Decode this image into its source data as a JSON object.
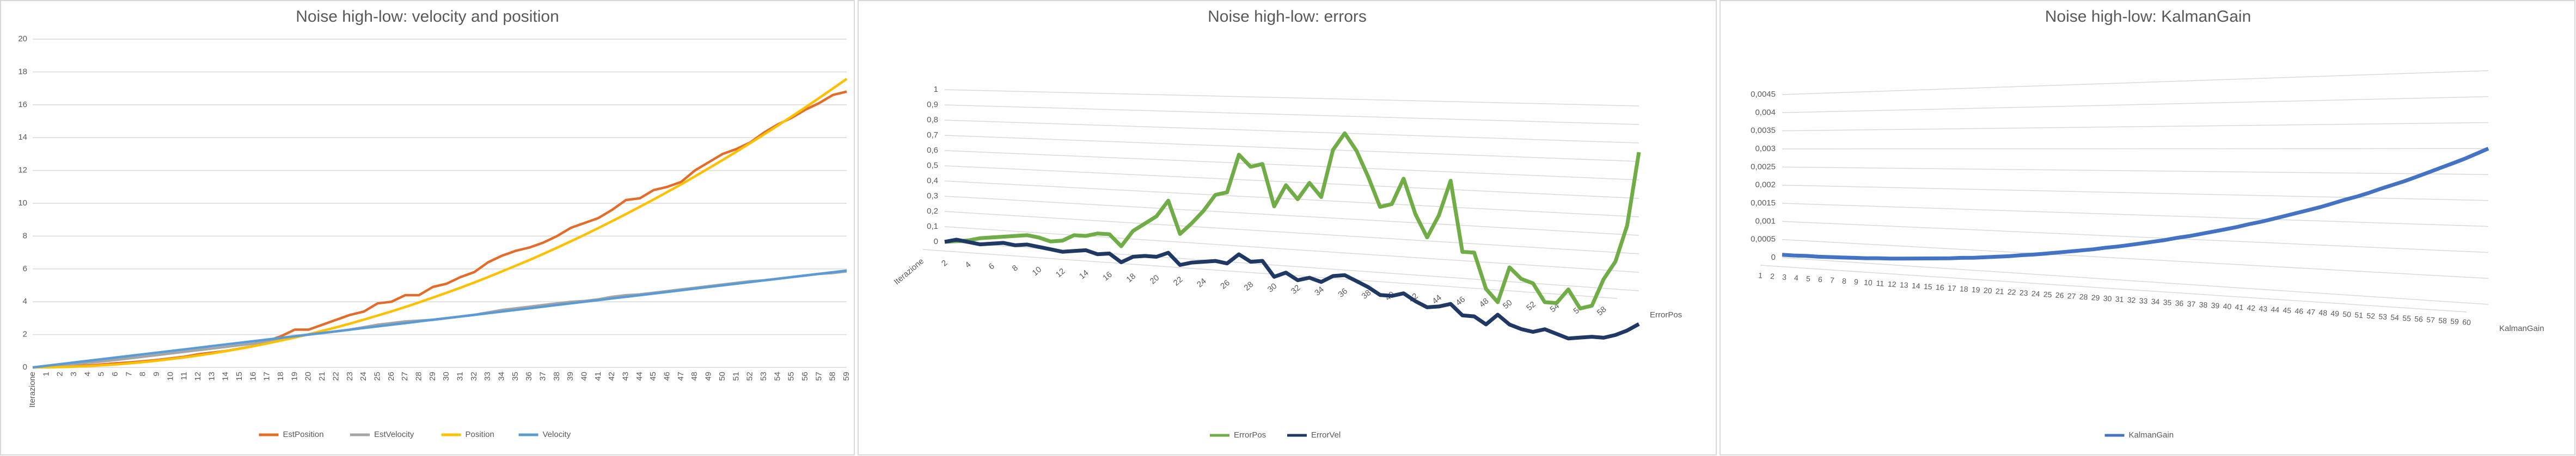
{
  "chart_data": [
    {
      "type": "line",
      "title": "Noise high-low: velocity and position",
      "categories": [
        "Iterazione",
        1,
        2,
        3,
        4,
        5,
        6,
        7,
        8,
        9,
        10,
        11,
        12,
        13,
        14,
        15,
        16,
        17,
        18,
        19,
        20,
        21,
        22,
        23,
        24,
        25,
        26,
        27,
        28,
        29,
        30,
        31,
        32,
        33,
        34,
        35,
        36,
        37,
        38,
        39,
        40,
        41,
        42,
        43,
        44,
        45,
        46,
        47,
        48,
        49,
        50,
        51,
        52,
        53,
        54,
        55,
        56,
        57,
        58,
        59
      ],
      "series": [
        {
          "name": "EstPosition",
          "color": "#e46c2b",
          "values": [
            0,
            0.02,
            0.05,
            0.08,
            0.12,
            0.18,
            0.25,
            0.3,
            0.37,
            0.45,
            0.55,
            0.65,
            0.8,
            0.9,
            1.0,
            1.15,
            1.3,
            1.6,
            1.9,
            2.3,
            2.3,
            2.6,
            2.9,
            3.2,
            3.4,
            3.9,
            4.0,
            4.4,
            4.4,
            4.9,
            5.1,
            5.5,
            5.8,
            6.4,
            6.8,
            7.1,
            7.3,
            7.6,
            8.0,
            8.5,
            8.8,
            9.1,
            9.6,
            10.2,
            10.3,
            10.8,
            11.0,
            11.3,
            12.0,
            12.5,
            13.0,
            13.3,
            13.7,
            14.3,
            14.8,
            15.2,
            15.7,
            16.1,
            16.6,
            16.8
          ]
        },
        {
          "name": "EstVelocity",
          "color": "#a5a5a5",
          "values": [
            0,
            0.05,
            0.12,
            0.2,
            0.28,
            0.36,
            0.45,
            0.55,
            0.65,
            0.75,
            0.85,
            0.95,
            1.05,
            1.15,
            1.25,
            1.35,
            1.45,
            1.6,
            1.75,
            1.9,
            2.0,
            2.1,
            2.2,
            2.3,
            2.45,
            2.6,
            2.7,
            2.8,
            2.85,
            2.9,
            3.0,
            3.1,
            3.2,
            3.35,
            3.5,
            3.6,
            3.7,
            3.8,
            3.9,
            4.0,
            4.05,
            4.15,
            4.3,
            4.4,
            4.45,
            4.55,
            4.65,
            4.75,
            4.85,
            4.95,
            5.05,
            5.15,
            5.25,
            5.3,
            5.4,
            5.5,
            5.6,
            5.7,
            5.75,
            5.85
          ]
        },
        {
          "name": "Position",
          "color": "#ffc000",
          "values": [
            0,
            0.01,
            0.02,
            0.05,
            0.08,
            0.13,
            0.18,
            0.25,
            0.32,
            0.41,
            0.51,
            0.61,
            0.73,
            0.85,
            0.99,
            1.14,
            1.29,
            1.46,
            1.64,
            1.82,
            2.02,
            2.23,
            2.44,
            2.67,
            2.91,
            3.16,
            3.41,
            3.68,
            3.96,
            4.25,
            4.55,
            4.85,
            5.17,
            5.5,
            5.84,
            6.19,
            6.54,
            6.91,
            7.29,
            7.68,
            8.08,
            8.49,
            8.91,
            9.34,
            9.78,
            10.23,
            10.69,
            11.15,
            11.64,
            12.13,
            12.63,
            13.14,
            13.66,
            14.19,
            14.73,
            15.28,
            15.84,
            16.41,
            16.99,
            17.58
          ]
        },
        {
          "name": "Velocity",
          "color": "#5b9bd5",
          "values": [
            0,
            0.1,
            0.2,
            0.3,
            0.4,
            0.5,
            0.6,
            0.7,
            0.8,
            0.9,
            1.0,
            1.1,
            1.2,
            1.3,
            1.4,
            1.5,
            1.6,
            1.7,
            1.8,
            1.9,
            2.0,
            2.1,
            2.2,
            2.3,
            2.4,
            2.5,
            2.6,
            2.7,
            2.8,
            2.9,
            3.0,
            3.1,
            3.2,
            3.3,
            3.4,
            3.5,
            3.6,
            3.7,
            3.8,
            3.9,
            4.0,
            4.1,
            4.2,
            4.3,
            4.4,
            4.5,
            4.6,
            4.7,
            4.8,
            4.9,
            5.0,
            5.1,
            5.2,
            5.3,
            5.4,
            5.5,
            5.6,
            5.7,
            5.8,
            5.9
          ]
        }
      ],
      "ylim": [
        0,
        20
      ],
      "yticks": [
        0,
        2,
        4,
        6,
        8,
        10,
        12,
        14,
        16,
        18,
        20
      ],
      "grid": true,
      "legend": "bottom"
    },
    {
      "type": "line3d",
      "title": "Noise high-low: errors",
      "categories": [
        "Iterazione",
        null,
        2,
        null,
        4,
        null,
        6,
        null,
        8,
        null,
        10,
        null,
        12,
        null,
        14,
        null,
        16,
        null,
        18,
        null,
        20,
        null,
        22,
        null,
        24,
        null,
        26,
        null,
        28,
        null,
        30,
        null,
        32,
        null,
        34,
        null,
        36,
        null,
        38,
        null,
        40,
        null,
        42,
        null,
        44,
        null,
        46,
        null,
        48,
        null,
        50,
        null,
        52,
        null,
        54,
        null,
        56,
        null,
        58,
        null
      ],
      "depth_label": "ErrorPos",
      "series": [
        {
          "name": "ErrorPos",
          "color": "#70ad47",
          "values": [
            0,
            0.01,
            0.02,
            0.04,
            0.05,
            0.06,
            0.07,
            0.08,
            0.07,
            0.05,
            0.06,
            0.1,
            0.1,
            0.12,
            0.12,
            0.05,
            0.15,
            0.2,
            0.25,
            0.35,
            0.15,
            0.22,
            0.3,
            0.4,
            0.42,
            0.65,
            0.58,
            0.6,
            0.35,
            0.48,
            0.4,
            0.5,
            0.42,
            0.7,
            0.8,
            0.7,
            0.55,
            0.38,
            0.4,
            0.55,
            0.35,
            0.22,
            0.35,
            0.55,
            0.15,
            0.15,
            -0.05,
            -0.12,
            0.08,
            0.02,
            0,
            -0.1,
            -0.1,
            -0.02,
            -0.12,
            -0.1,
            0.05,
            0.15,
            0.35,
            0.75
          ]
        },
        {
          "name": "ErrorVel",
          "color": "#203864",
          "values": [
            0,
            0.02,
            0.01,
            0,
            0.01,
            0.02,
            0.01,
            0.02,
            0.01,
            0,
            -0.01,
            0,
            0.01,
            -0.01,
            0,
            -0.05,
            -0.01,
            0,
            0,
            0.03,
            -0.04,
            -0.02,
            -0.01,
            0,
            -0.01,
            0.05,
            0.01,
            0.02,
            -0.07,
            -0.04,
            -0.08,
            -0.06,
            -0.08,
            -0.04,
            -0.03,
            -0.06,
            -0.09,
            -0.13,
            -0.13,
            -0.11,
            -0.15,
            -0.18,
            -0.17,
            -0.15,
            -0.21,
            -0.21,
            -0.25,
            -0.19,
            -0.24,
            -0.26,
            -0.27,
            -0.25,
            -0.27,
            -0.29,
            -0.28,
            -0.27,
            -0.27,
            -0.25,
            -0.22,
            -0.18
          ]
        }
      ],
      "ylim": [
        0,
        1
      ],
      "yticks": [
        0,
        {
          "value": 0.1,
          "label": "0,1"
        },
        {
          "value": 0.2,
          "label": "0,2"
        },
        {
          "value": 0.3,
          "label": "0,3"
        },
        {
          "value": 0.4,
          "label": "0,4"
        },
        {
          "value": 0.5,
          "label": "0,5"
        },
        {
          "value": 0.6,
          "label": "0,6"
        },
        {
          "value": 0.7,
          "label": "0,7"
        },
        {
          "value": 0.8,
          "label": "0,8"
        },
        {
          "value": 0.9,
          "label": "0,9"
        },
        1
      ],
      "grid": true,
      "legend": "bottom"
    },
    {
      "type": "line3d",
      "title": "Noise high-low: KalmanGain",
      "categories": [
        1,
        2,
        3,
        4,
        5,
        6,
        7,
        8,
        9,
        10,
        11,
        12,
        13,
        14,
        15,
        16,
        17,
        18,
        19,
        20,
        21,
        22,
        23,
        24,
        25,
        26,
        27,
        28,
        29,
        30,
        31,
        32,
        33,
        34,
        35,
        36,
        37,
        38,
        39,
        40,
        41,
        42,
        43,
        44,
        45,
        46,
        47,
        48,
        49,
        50,
        51,
        52,
        53,
        54,
        55,
        56,
        57,
        58,
        59,
        60
      ],
      "depth_label": "KalmanGain",
      "series": [
        {
          "name": "KalmanGain",
          "color": "#4472c4",
          "values": [
            8e-05,
            8e-05,
            9e-05,
            9e-05,
            0.0001,
            0.00011,
            0.00012,
            0.00013,
            0.00015,
            0.00016,
            0.00018,
            0.0002,
            0.00022,
            0.00024,
            0.00026,
            0.00029,
            0.00031,
            0.00034,
            0.00037,
            0.0004,
            0.00044,
            0.00047,
            0.00051,
            0.00055,
            0.00059,
            0.00063,
            0.00067,
            0.00072,
            0.00076,
            0.00081,
            0.00086,
            0.00091,
            0.00096,
            0.00102,
            0.00107,
            0.00113,
            0.00119,
            0.00125,
            0.00131,
            0.00138,
            0.00144,
            0.00151,
            0.00158,
            0.00165,
            0.00172,
            0.00179,
            0.00187,
            0.00195,
            0.00202,
            0.0021,
            0.00219,
            0.00227,
            0.00235,
            0.00244,
            0.00253,
            0.00262,
            0.00271,
            0.0028,
            0.0029,
            0.003
          ]
        }
      ],
      "ylim": [
        0,
        0.0045
      ],
      "yticks": [
        0,
        {
          "value": 0.0005,
          "label": "0,0005"
        },
        {
          "value": 0.001,
          "label": "0,001"
        },
        {
          "value": 0.0015,
          "label": "0,0015"
        },
        {
          "value": 0.002,
          "label": "0,002"
        },
        {
          "value": 0.0025,
          "label": "0,0025"
        },
        {
          "value": 0.003,
          "label": "0,003"
        },
        {
          "value": 0.0035,
          "label": "0,0035"
        },
        {
          "value": 0.004,
          "label": "0,004"
        },
        {
          "value": 0.0045,
          "label": "0,0045"
        }
      ],
      "grid": true,
      "legend": "bottom"
    }
  ]
}
